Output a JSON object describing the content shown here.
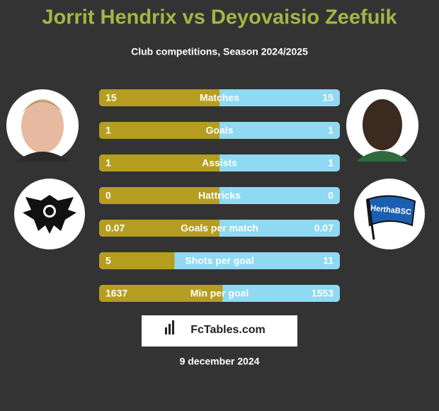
{
  "header": {
    "title": "Jorrit Hendrix vs Deyovaisio Zeefuik",
    "subtitle": "Club competitions, Season 2024/2025"
  },
  "rows": [
    {
      "label": "Matches",
      "left": 15,
      "right": 15
    },
    {
      "label": "Goals",
      "left": 1,
      "right": 1
    },
    {
      "label": "Assists",
      "left": 1,
      "right": 1
    },
    {
      "label": "Hattricks",
      "left": 0,
      "right": 0
    },
    {
      "label": "Goals per match",
      "left": 0.07,
      "right": 0.07
    },
    {
      "label": "Shots per goal",
      "left": 5,
      "right": 11
    },
    {
      "label": "Min per goal",
      "left": 1637,
      "right": 1553
    }
  ],
  "badge_text": "HerthaBSC",
  "brand": "FcTables.com",
  "date": "9 december 2024"
}
